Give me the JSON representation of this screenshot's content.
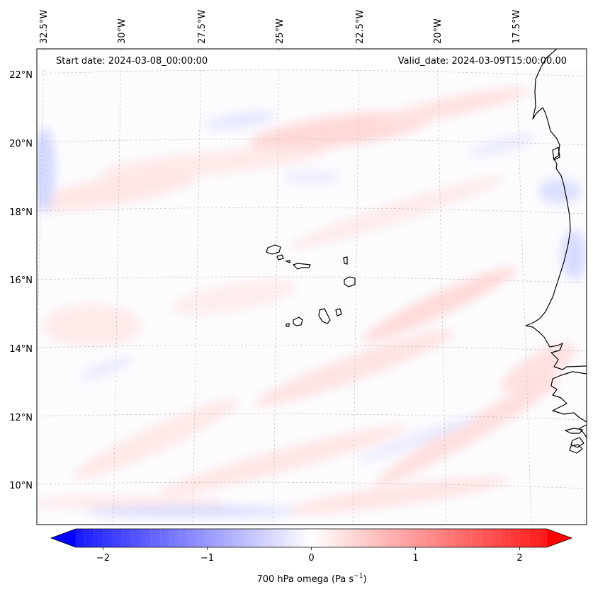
{
  "annotations": {
    "start_date": "Start date: 2024-03-08_00:00:00",
    "valid_date": "Valid_date: 2024-03-09T15:00:00.00"
  },
  "longitude_ticks": [
    "32.5°W",
    "30°W",
    "27.5°W",
    "25°W",
    "22.5°W",
    "20°W",
    "17.5°W"
  ],
  "latitude_ticks": [
    "22°N",
    "20°N",
    "18°N",
    "16°N",
    "14°N",
    "12°N",
    "10°N"
  ],
  "colorbar": {
    "label_main": "700 hPa omega (Pa s",
    "label_exp": "−1",
    "label_close": ")",
    "tick_labels": [
      "−2",
      "−1",
      "0",
      "1",
      "2"
    ],
    "tick_values": [
      -2,
      -1,
      0,
      1,
      2
    ],
    "range": [
      -2.5,
      2.5
    ],
    "color_low": "#0000ff",
    "color_mid": "#ffffff",
    "color_high": "#ff0000"
  },
  "map": {
    "field": "700 hPa omega",
    "lon_range_deg": [
      -33,
      -15.5
    ],
    "lat_range_deg": [
      9,
      23
    ],
    "coastline_color": "#000000"
  }
}
